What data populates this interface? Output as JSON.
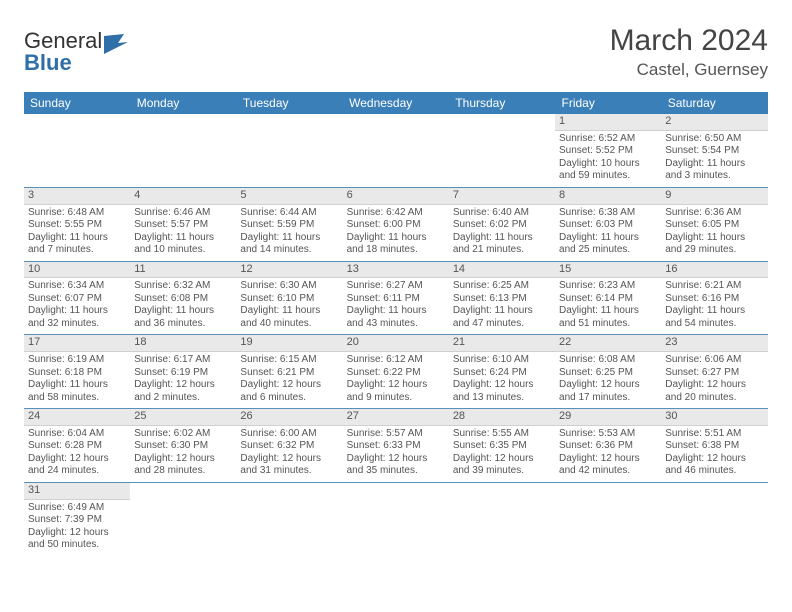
{
  "logo": {
    "general": "General",
    "blue": "Blue"
  },
  "title": "March 2024",
  "location": "Castel, Guernsey",
  "header_bg": "#3b7fb8",
  "header_fg": "#ffffff",
  "daynum_bg": "#e9e9e9",
  "divider": "#5a8fb8",
  "weekdays": [
    "Sunday",
    "Monday",
    "Tuesday",
    "Wednesday",
    "Thursday",
    "Friday",
    "Saturday"
  ],
  "weeks": [
    [
      null,
      null,
      null,
      null,
      null,
      {
        "n": "1",
        "sr": "Sunrise: 6:52 AM",
        "ss": "Sunset: 5:52 PM",
        "dl": "Daylight: 10 hours and 59 minutes."
      },
      {
        "n": "2",
        "sr": "Sunrise: 6:50 AM",
        "ss": "Sunset: 5:54 PM",
        "dl": "Daylight: 11 hours and 3 minutes."
      }
    ],
    [
      {
        "n": "3",
        "sr": "Sunrise: 6:48 AM",
        "ss": "Sunset: 5:55 PM",
        "dl": "Daylight: 11 hours and 7 minutes."
      },
      {
        "n": "4",
        "sr": "Sunrise: 6:46 AM",
        "ss": "Sunset: 5:57 PM",
        "dl": "Daylight: 11 hours and 10 minutes."
      },
      {
        "n": "5",
        "sr": "Sunrise: 6:44 AM",
        "ss": "Sunset: 5:59 PM",
        "dl": "Daylight: 11 hours and 14 minutes."
      },
      {
        "n": "6",
        "sr": "Sunrise: 6:42 AM",
        "ss": "Sunset: 6:00 PM",
        "dl": "Daylight: 11 hours and 18 minutes."
      },
      {
        "n": "7",
        "sr": "Sunrise: 6:40 AM",
        "ss": "Sunset: 6:02 PM",
        "dl": "Daylight: 11 hours and 21 minutes."
      },
      {
        "n": "8",
        "sr": "Sunrise: 6:38 AM",
        "ss": "Sunset: 6:03 PM",
        "dl": "Daylight: 11 hours and 25 minutes."
      },
      {
        "n": "9",
        "sr": "Sunrise: 6:36 AM",
        "ss": "Sunset: 6:05 PM",
        "dl": "Daylight: 11 hours and 29 minutes."
      }
    ],
    [
      {
        "n": "10",
        "sr": "Sunrise: 6:34 AM",
        "ss": "Sunset: 6:07 PM",
        "dl": "Daylight: 11 hours and 32 minutes."
      },
      {
        "n": "11",
        "sr": "Sunrise: 6:32 AM",
        "ss": "Sunset: 6:08 PM",
        "dl": "Daylight: 11 hours and 36 minutes."
      },
      {
        "n": "12",
        "sr": "Sunrise: 6:30 AM",
        "ss": "Sunset: 6:10 PM",
        "dl": "Daylight: 11 hours and 40 minutes."
      },
      {
        "n": "13",
        "sr": "Sunrise: 6:27 AM",
        "ss": "Sunset: 6:11 PM",
        "dl": "Daylight: 11 hours and 43 minutes."
      },
      {
        "n": "14",
        "sr": "Sunrise: 6:25 AM",
        "ss": "Sunset: 6:13 PM",
        "dl": "Daylight: 11 hours and 47 minutes."
      },
      {
        "n": "15",
        "sr": "Sunrise: 6:23 AM",
        "ss": "Sunset: 6:14 PM",
        "dl": "Daylight: 11 hours and 51 minutes."
      },
      {
        "n": "16",
        "sr": "Sunrise: 6:21 AM",
        "ss": "Sunset: 6:16 PM",
        "dl": "Daylight: 11 hours and 54 minutes."
      }
    ],
    [
      {
        "n": "17",
        "sr": "Sunrise: 6:19 AM",
        "ss": "Sunset: 6:18 PM",
        "dl": "Daylight: 11 hours and 58 minutes."
      },
      {
        "n": "18",
        "sr": "Sunrise: 6:17 AM",
        "ss": "Sunset: 6:19 PM",
        "dl": "Daylight: 12 hours and 2 minutes."
      },
      {
        "n": "19",
        "sr": "Sunrise: 6:15 AM",
        "ss": "Sunset: 6:21 PM",
        "dl": "Daylight: 12 hours and 6 minutes."
      },
      {
        "n": "20",
        "sr": "Sunrise: 6:12 AM",
        "ss": "Sunset: 6:22 PM",
        "dl": "Daylight: 12 hours and 9 minutes."
      },
      {
        "n": "21",
        "sr": "Sunrise: 6:10 AM",
        "ss": "Sunset: 6:24 PM",
        "dl": "Daylight: 12 hours and 13 minutes."
      },
      {
        "n": "22",
        "sr": "Sunrise: 6:08 AM",
        "ss": "Sunset: 6:25 PM",
        "dl": "Daylight: 12 hours and 17 minutes."
      },
      {
        "n": "23",
        "sr": "Sunrise: 6:06 AM",
        "ss": "Sunset: 6:27 PM",
        "dl": "Daylight: 12 hours and 20 minutes."
      }
    ],
    [
      {
        "n": "24",
        "sr": "Sunrise: 6:04 AM",
        "ss": "Sunset: 6:28 PM",
        "dl": "Daylight: 12 hours and 24 minutes."
      },
      {
        "n": "25",
        "sr": "Sunrise: 6:02 AM",
        "ss": "Sunset: 6:30 PM",
        "dl": "Daylight: 12 hours and 28 minutes."
      },
      {
        "n": "26",
        "sr": "Sunrise: 6:00 AM",
        "ss": "Sunset: 6:32 PM",
        "dl": "Daylight: 12 hours and 31 minutes."
      },
      {
        "n": "27",
        "sr": "Sunrise: 5:57 AM",
        "ss": "Sunset: 6:33 PM",
        "dl": "Daylight: 12 hours and 35 minutes."
      },
      {
        "n": "28",
        "sr": "Sunrise: 5:55 AM",
        "ss": "Sunset: 6:35 PM",
        "dl": "Daylight: 12 hours and 39 minutes."
      },
      {
        "n": "29",
        "sr": "Sunrise: 5:53 AM",
        "ss": "Sunset: 6:36 PM",
        "dl": "Daylight: 12 hours and 42 minutes."
      },
      {
        "n": "30",
        "sr": "Sunrise: 5:51 AM",
        "ss": "Sunset: 6:38 PM",
        "dl": "Daylight: 12 hours and 46 minutes."
      }
    ],
    [
      {
        "n": "31",
        "sr": "Sunrise: 6:49 AM",
        "ss": "Sunset: 7:39 PM",
        "dl": "Daylight: 12 hours and 50 minutes."
      },
      null,
      null,
      null,
      null,
      null,
      null
    ]
  ]
}
